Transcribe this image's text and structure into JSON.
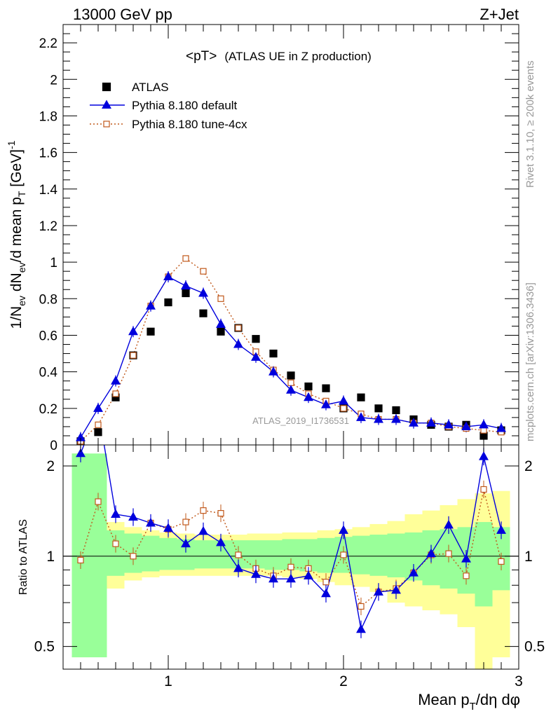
{
  "header": {
    "left": "13000 GeV pp",
    "right": "Z+Jet"
  },
  "side": {
    "rivet": "Rivet 3.1.10, ≥ 200k events",
    "mcplots": "mcplots.cern.ch [arXiv:1306.3436]"
  },
  "chart_data": {
    "type": "scatter",
    "title_main": "<pT>",
    "title_sub": "(ATLAS UE in Z production)",
    "analysis_id": "ATLAS_2019_I1736531",
    "ylabel_top": "1/N_ev dN_ev/d mean p_T [GeV]^-1",
    "ylabel_ratio": "Ratio to ATLAS",
    "xlabel": "Mean p_T/dη dφ",
    "xlim": [
      0.4,
      3.0
    ],
    "ylim_top": [
      0,
      2.3
    ],
    "ylim_ratio": [
      0.42,
      2.35
    ],
    "ratio_log_scale": true,
    "xticks": [
      "1",
      "2",
      "3"
    ],
    "yticks_top": [
      "0",
      "0.2",
      "0.4",
      "0.6",
      "0.8",
      "1",
      "1.2",
      "1.4",
      "1.6",
      "1.8",
      "2",
      "2.2"
    ],
    "yticks_ratio": [
      "0.5",
      "1",
      "2"
    ],
    "x": [
      0.5,
      0.6,
      0.7,
      0.8,
      0.9,
      1.0,
      1.1,
      1.2,
      1.3,
      1.4,
      1.5,
      1.6,
      1.7,
      1.8,
      1.9,
      2.0,
      2.1,
      2.2,
      2.3,
      2.4,
      2.5,
      2.6,
      2.7,
      2.8,
      2.9
    ],
    "series": [
      {
        "name": "ATLAS",
        "color": "#000000",
        "values": [
          0.02,
          0.07,
          0.26,
          0.49,
          0.62,
          0.78,
          0.83,
          0.72,
          0.62,
          0.64,
          0.58,
          0.5,
          0.38,
          0.32,
          0.31,
          0.2,
          0.26,
          0.2,
          0.19,
          0.14,
          0.11,
          0.1,
          0.11,
          0.05,
          0.08
        ]
      },
      {
        "name": "Pythia 8.180 default",
        "color": "#0000dd",
        "values": [
          0.04,
          0.2,
          0.35,
          0.62,
          0.76,
          0.92,
          0.87,
          0.83,
          0.66,
          0.55,
          0.48,
          0.4,
          0.3,
          0.26,
          0.22,
          0.24,
          0.15,
          0.14,
          0.14,
          0.12,
          0.12,
          0.11,
          0.1,
          0.11,
          0.09
        ],
        "ratio": [
          2.2,
          3.1,
          1.38,
          1.35,
          1.29,
          1.24,
          1.1,
          1.21,
          1.11,
          0.91,
          0.87,
          0.84,
          0.84,
          0.86,
          0.75,
          1.22,
          0.57,
          0.76,
          0.77,
          0.88,
          1.02,
          1.27,
          0.98,
          2.15,
          1.22
        ]
      },
      {
        "name": "Pythia 8.180 tune-4cx",
        "color": "#c0581a",
        "values": [
          0.02,
          0.11,
          0.28,
          0.49,
          0.76,
          0.92,
          1.02,
          0.95,
          0.8,
          0.64,
          0.51,
          0.41,
          0.34,
          0.28,
          0.24,
          0.2,
          0.17,
          0.14,
          0.14,
          0.12,
          0.12,
          0.1,
          0.09,
          0.08,
          0.07
        ],
        "ratio": [
          0.97,
          1.52,
          1.1,
          1.0,
          1.29,
          1.23,
          1.3,
          1.42,
          1.39,
          1.01,
          0.91,
          0.86,
          0.92,
          0.91,
          0.82,
          1.01,
          0.68,
          0.76,
          0.78,
          0.88,
          1.01,
          1.02,
          0.86,
          1.67,
          0.96
        ]
      }
    ],
    "bands": {
      "stat_green": [
        [
          0.46,
          2.2
        ],
        [
          0.46,
          2.2
        ],
        [
          0.86,
          1.22
        ],
        [
          0.88,
          1.19
        ],
        [
          0.89,
          1.17
        ],
        [
          0.9,
          1.15
        ],
        [
          0.9,
          1.14
        ],
        [
          0.91,
          1.13
        ],
        [
          0.91,
          1.13
        ],
        [
          0.91,
          1.13
        ],
        [
          0.91,
          1.13
        ],
        [
          0.9,
          1.13
        ],
        [
          0.9,
          1.14
        ],
        [
          0.89,
          1.14
        ],
        [
          0.88,
          1.15
        ],
        [
          0.88,
          1.16
        ],
        [
          0.87,
          1.17
        ],
        [
          0.86,
          1.18
        ],
        [
          0.85,
          1.19
        ],
        [
          0.83,
          1.2
        ],
        [
          0.8,
          1.22
        ],
        [
          0.78,
          1.23
        ],
        [
          0.75,
          1.25
        ],
        [
          0.68,
          1.3
        ],
        [
          0.77,
          1.25
        ]
      ],
      "syst_yellow": [
        [
          0.46,
          2.2
        ],
        [
          0.64,
          1.85
        ],
        [
          0.78,
          1.3
        ],
        [
          0.83,
          1.25
        ],
        [
          0.85,
          1.22
        ],
        [
          0.86,
          1.2
        ],
        [
          0.86,
          1.19
        ],
        [
          0.86,
          1.18
        ],
        [
          0.86,
          1.18
        ],
        [
          0.86,
          1.18
        ],
        [
          0.86,
          1.19
        ],
        [
          0.86,
          1.19
        ],
        [
          0.85,
          1.2
        ],
        [
          0.84,
          1.2
        ],
        [
          0.82,
          1.22
        ],
        [
          0.8,
          1.23
        ],
        [
          0.79,
          1.25
        ],
        [
          0.76,
          1.28
        ],
        [
          0.7,
          1.31
        ],
        [
          0.68,
          1.38
        ],
        [
          0.66,
          1.42
        ],
        [
          0.64,
          1.48
        ],
        [
          0.58,
          1.55
        ],
        [
          0.42,
          1.62
        ],
        [
          0.46,
          1.65
        ]
      ]
    }
  }
}
